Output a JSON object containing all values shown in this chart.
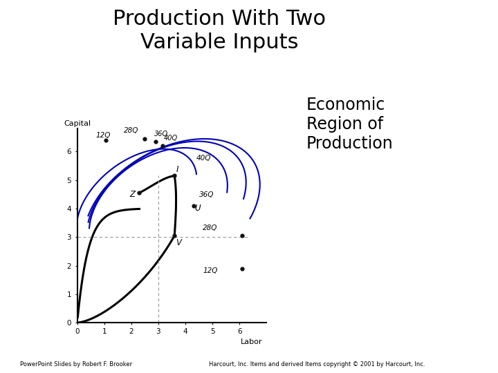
{
  "title": "Production With Two\nVariable Inputs",
  "annotation_text": "Economic\nRegion of\nProduction",
  "xlabel": "Labor",
  "ylabel": "Capital",
  "xlim": [
    0,
    7.0
  ],
  "ylim": [
    0,
    6.8
  ],
  "xticks": [
    0,
    1,
    2,
    3,
    4,
    5,
    6
  ],
  "yticks": [
    0,
    1,
    2,
    3,
    4,
    5,
    6
  ],
  "isoquant_color": "#0000BB",
  "ridge_color": "#000000",
  "dashed_color": "#999999",
  "footer_left": "PowerPoint Slides by Robert F. Brooker",
  "footer_right": "Harcourt, Inc. Items and derived Items copyright © 2001 by Harcourt, Inc.",
  "background_color": "#ffffff",
  "title_fontsize": 22,
  "annot_fontsize": 17,
  "label_fontsize": 7.5
}
